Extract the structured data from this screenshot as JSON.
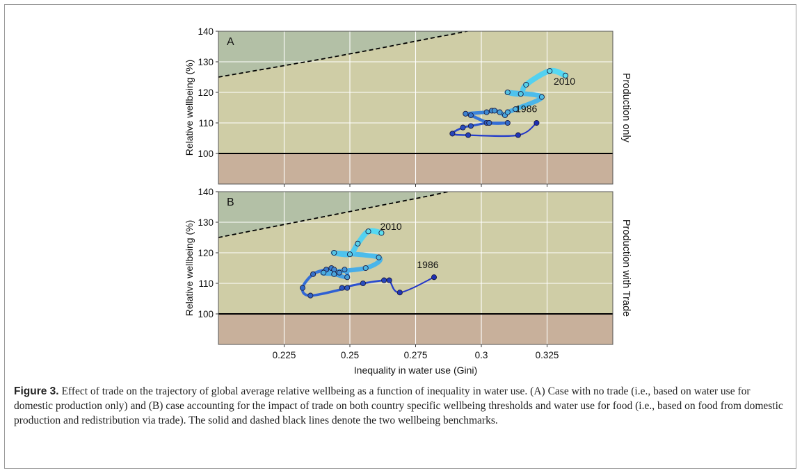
{
  "colors": {
    "plot_bg": "#cfcda6",
    "upper_region": "#b3c0a6",
    "lower_region": "#c8b09b",
    "dark_point": "#1e2fb4",
    "light_point": "#5ee0ee"
  },
  "chart_data": [
    {
      "type": "line",
      "panel_label": "A",
      "side_label": "Production only",
      "xlabel": "",
      "ylabel": "Relative wellbeing (%)",
      "xlim": [
        0.2,
        0.35
      ],
      "ylim": [
        90,
        140
      ],
      "xticks": [
        0.225,
        0.25,
        0.275,
        0.3,
        0.325
      ],
      "xtick_labels": [
        "",
        "",
        "",
        "",
        ""
      ],
      "yticks": [
        100,
        110,
        120,
        130,
        140
      ],
      "ytick_labels": [
        "100",
        "110",
        "120",
        "130",
        "140"
      ],
      "grid": true,
      "benchmarks": {
        "solid_y": 100,
        "dashed": [
          [
            0.2,
            125
          ],
          [
            0.22,
            128
          ],
          [
            0.24,
            131
          ],
          [
            0.26,
            134.2
          ],
          [
            0.28,
            137.6
          ],
          [
            0.29,
            139.2
          ],
          [
            0.295,
            140.1
          ]
        ]
      },
      "annotations": [
        {
          "text": "2010",
          "x": 0.3275,
          "y": 122.5
        },
        {
          "text": "1986",
          "x": 0.313,
          "y": 113.5
        }
      ],
      "series": [
        {
          "years": [
            1986,
            1987,
            1988,
            1989,
            1990,
            1991,
            1992,
            1993,
            1994,
            1995,
            1996,
            1997,
            1998,
            1999,
            2000,
            2001,
            2002,
            2003,
            2004,
            2005,
            2006,
            2007,
            2008,
            2009,
            2010
          ],
          "x": [
            0.321,
            0.314,
            0.295,
            0.289,
            0.293,
            0.296,
            0.302,
            0.303,
            0.31,
            0.303,
            0.296,
            0.294,
            0.302,
            0.304,
            0.305,
            0.307,
            0.309,
            0.31,
            0.313,
            0.323,
            0.31,
            0.315,
            0.317,
            0.326,
            0.332
          ],
          "y": [
            110,
            106,
            106,
            106.5,
            108.5,
            109,
            110,
            110,
            110,
            110,
            112.5,
            113,
            113.5,
            114,
            114,
            113.5,
            112.5,
            113.5,
            114.5,
            118.5,
            120,
            119.5,
            122.5,
            127,
            125.5
          ]
        }
      ]
    },
    {
      "type": "line",
      "panel_label": "B",
      "side_label": "Production with Trade",
      "xlabel": "Inequality in water use (Gini)",
      "ylabel": "Relative wellbeing (%)",
      "xlim": [
        0.2,
        0.35
      ],
      "ylim": [
        90,
        140
      ],
      "xticks": [
        0.225,
        0.25,
        0.275,
        0.3,
        0.325
      ],
      "xtick_labels": [
        "0.225",
        "0.25",
        "0.275",
        "0.3",
        "0.325"
      ],
      "yticks": [
        100,
        110,
        120,
        130,
        140
      ],
      "ytick_labels": [
        "100",
        "110",
        "120",
        "130",
        "140"
      ],
      "grid": true,
      "benchmarks": {
        "solid_y": 100,
        "dashed": [
          [
            0.2,
            125
          ],
          [
            0.22,
            128.4
          ],
          [
            0.24,
            131.8
          ],
          [
            0.26,
            135.2
          ],
          [
            0.28,
            138.6
          ],
          [
            0.288,
            140.1
          ]
        ]
      },
      "annotations": [
        {
          "text": "2010",
          "x": 0.2615,
          "y": 127.5
        },
        {
          "text": "1986",
          "x": 0.2755,
          "y": 115
        }
      ],
      "series": [
        {
          "years": [
            1986,
            1987,
            1988,
            1989,
            1990,
            1991,
            1992,
            1993,
            1994,
            1995,
            1996,
            1997,
            1998,
            1999,
            2000,
            2001,
            2002,
            2003,
            2004,
            2005,
            2006,
            2007,
            2008,
            2009,
            2010
          ],
          "x": [
            0.282,
            0.269,
            0.265,
            0.263,
            0.255,
            0.247,
            0.249,
            0.235,
            0.232,
            0.236,
            0.241,
            0.243,
            0.244,
            0.246,
            0.248,
            0.249,
            0.244,
            0.24,
            0.256,
            0.261,
            0.244,
            0.25,
            0.253,
            0.257,
            0.262
          ],
          "y": [
            112,
            107,
            111,
            111,
            110,
            108.5,
            108.5,
            106,
            108.5,
            113,
            114.5,
            115,
            114.5,
            113.5,
            114.5,
            112,
            113,
            113.5,
            115,
            118.5,
            120,
            119.5,
            123,
            127,
            126.5
          ]
        }
      ]
    }
  ],
  "caption": {
    "label": "Figure 3.",
    "text": " Effect of trade on the trajectory of global average relative wellbeing as a function of inequality in water use. (A) Case with no trade (i.e., based on water use for domestic production only) and (B) case accounting for the impact of trade on both country specific wellbeing thresholds and water use for food (i.e., based on food from domestic production and redistribution via trade). The solid and dashed black lines denote the two wellbeing benchmarks."
  }
}
